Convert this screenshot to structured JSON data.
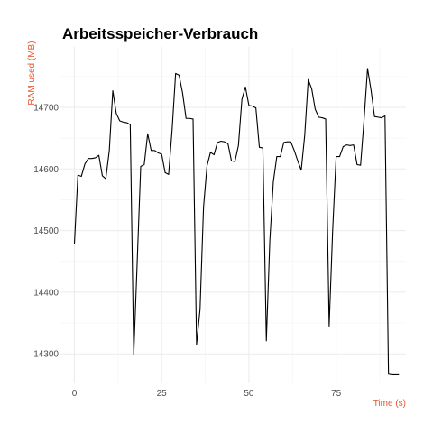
{
  "chart_data": {
    "type": "line",
    "title": "Arbeitsspeicher-Verbrauch",
    "xlabel": "Time (s)",
    "ylabel": "RAM used (MB)",
    "xlim": [
      -4,
      95
    ],
    "ylim": [
      14252,
      14798
    ],
    "x_ticks": [
      0,
      25,
      50,
      75
    ],
    "y_ticks": [
      14300,
      14400,
      14500,
      14600,
      14700
    ],
    "grid": true,
    "line_color": "#000000",
    "label_color": "#e8542a",
    "series": [
      {
        "x": [
          0,
          1,
          2,
          3,
          4,
          5,
          6,
          7,
          8,
          9,
          10,
          11,
          12,
          13,
          14,
          15,
          16,
          17,
          18,
          19,
          20,
          21,
          22,
          23,
          24,
          25,
          26,
          27,
          28,
          29,
          30,
          31,
          32,
          33,
          34,
          35,
          36,
          37,
          38,
          39,
          40,
          41,
          42,
          43,
          44,
          45,
          46,
          47,
          48,
          49,
          50,
          51,
          52,
          53,
          54,
          55,
          56,
          57,
          58,
          59,
          60,
          61,
          62,
          63,
          64,
          65,
          66,
          67,
          68,
          69,
          70,
          71,
          72,
          73,
          74,
          75,
          76,
          77,
          78,
          79,
          80,
          81,
          82,
          83,
          84,
          85,
          86,
          87,
          88,
          89,
          90,
          91,
          92,
          93
        ],
        "y": [
          14478,
          14590,
          14588,
          14608,
          14617,
          14617,
          14618,
          14622,
          14589,
          14584,
          14630,
          14727,
          14690,
          14678,
          14676,
          14675,
          14672,
          14298,
          14450,
          14604,
          14607,
          14657,
          14630,
          14630,
          14626,
          14624,
          14594,
          14591,
          14664,
          14755,
          14752,
          14723,
          14682,
          14682,
          14681,
          14315,
          14372,
          14538,
          14605,
          14627,
          14623,
          14643,
          14645,
          14644,
          14641,
          14613,
          14612,
          14638,
          14713,
          14733,
          14703,
          14702,
          14699,
          14635,
          14634,
          14321,
          14484,
          14579,
          14620,
          14620,
          14643,
          14644,
          14644,
          14630,
          14613,
          14598,
          14655,
          14745,
          14730,
          14697,
          14684,
          14683,
          14681,
          14345,
          14500,
          14620,
          14620,
          14636,
          14639,
          14638,
          14639,
          14607,
          14606,
          14680,
          14763,
          14728,
          14685,
          14684,
          14683,
          14686,
          14267,
          14266,
          14266,
          14266
        ]
      }
    ]
  }
}
